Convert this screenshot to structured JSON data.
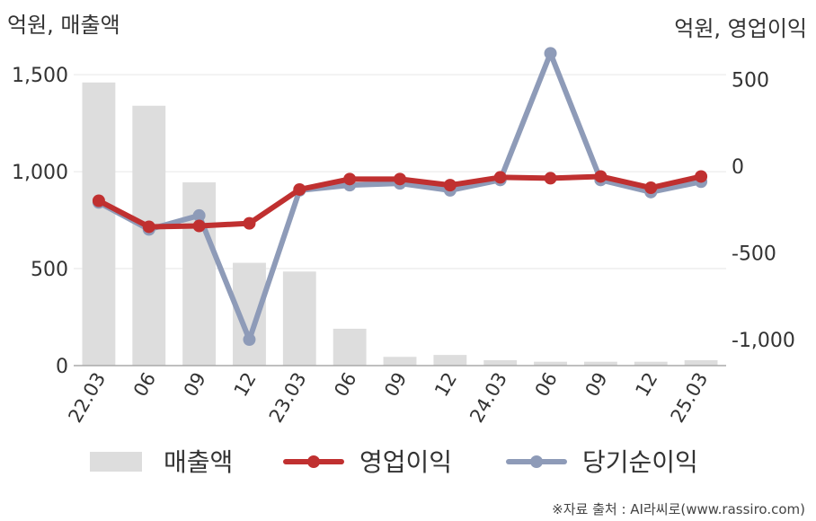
{
  "chart_data": {
    "type": "bar+line",
    "left_axis_label": "억원, 매출액",
    "right_axis_label": "억원, 영업이익",
    "categories": [
      "22.03",
      "06",
      "09",
      "12",
      "23.03",
      "06",
      "09",
      "12",
      "24.03",
      "06",
      "09",
      "12",
      "25.03"
    ],
    "left_ylim": [
      0,
      1700
    ],
    "left_ticks": [
      {
        "value": 0,
        "label": "0"
      },
      {
        "value": 500,
        "label": "500"
      },
      {
        "value": 1000,
        "label": "1,000"
      },
      {
        "value": 1500,
        "label": "1,500"
      }
    ],
    "right_ylim": [
      -1150,
      750
    ],
    "right_ticks": [
      {
        "value": 500,
        "label": "500"
      },
      {
        "value": 0,
        "label": "0"
      },
      {
        "value": -500,
        "label": "-500"
      },
      {
        "value": -1000,
        "label": "-1,000"
      }
    ],
    "bar_series": {
      "name": "매출액",
      "color": "#dddddd",
      "values": [
        1460,
        1340,
        945,
        530,
        485,
        190,
        45,
        55,
        28,
        20,
        20,
        20,
        28
      ]
    },
    "line_series": [
      {
        "name": "당기순이익",
        "color": "#8e9bb8",
        "values": [
          -210,
          -365,
          -285,
          -1000,
          -140,
          -110,
          -100,
          -140,
          -80,
          650,
          -80,
          -150,
          -90
        ]
      },
      {
        "name": "영업이익",
        "color": "#c03030",
        "values": [
          -200,
          -350,
          -345,
          -330,
          -135,
          -75,
          -75,
          -110,
          -65,
          -70,
          -60,
          -125,
          -60
        ]
      }
    ],
    "legend": [
      {
        "name": "매출액",
        "kind": "bar",
        "color": "#dddddd"
      },
      {
        "name": "영업이익",
        "kind": "line",
        "color": "#c03030"
      },
      {
        "name": "당기순이익",
        "kind": "line",
        "color": "#8e9bb8"
      }
    ],
    "legend_position": "bottom",
    "grid": true,
    "source": "※자료 출처 : AI라씨로(www.rassiro.com)"
  }
}
